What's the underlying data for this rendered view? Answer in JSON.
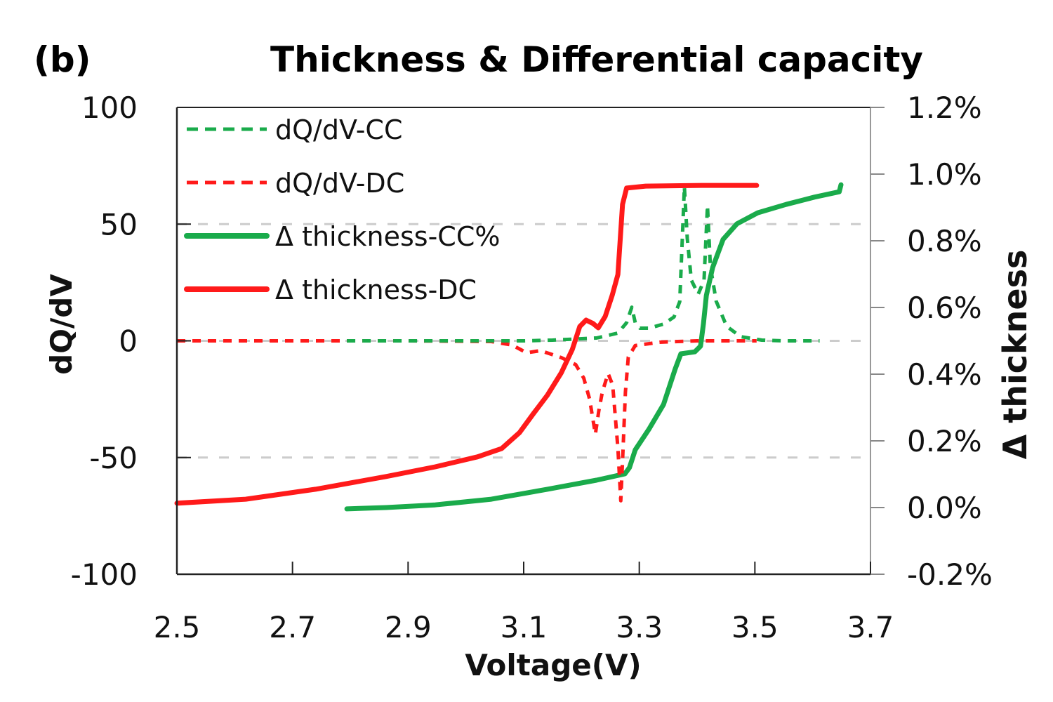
{
  "panel_label": "(b)",
  "chart_data": {
    "type": "line",
    "title": "Thickness & Differential capacity",
    "xlabel": "Voltage(V)",
    "ylabel": "dQ/dV",
    "y2label": "Δ thickness",
    "xlim": [
      2.5,
      3.7
    ],
    "ylim": [
      -100,
      100
    ],
    "y2lim": [
      -0.2,
      1.2
    ],
    "x_ticks": [
      "2.5",
      "2.7",
      "2.9",
      "3.1",
      "3.3",
      "3.5",
      "3.7"
    ],
    "x_tick_values": [
      2.5,
      2.7,
      2.9,
      3.1,
      3.3,
      3.5,
      3.7
    ],
    "y_ticks": [
      "100",
      "50",
      "0",
      "-50",
      "-100"
    ],
    "y_tick_values": [
      100,
      50,
      0,
      -50,
      -100
    ],
    "y2_ticks": [
      "1.2%",
      "1.0%",
      "0.8%",
      "0.6%",
      "0.4%",
      "0.2%",
      "0.0%",
      "-0.2%"
    ],
    "y2_tick_values": [
      1.2,
      1.0,
      0.8,
      0.6,
      0.4,
      0.2,
      0.0,
      -0.2
    ],
    "grid": "horizontal dashed at dQ/dV = 50, 0, -50",
    "legend_position": "top-left",
    "series": [
      {
        "name": "dQ/dV-CC",
        "axis": "left",
        "style": "dashed",
        "color": "#1aab4b",
        "x": [
          2.794,
          2.9,
          3.0,
          3.1,
          3.15,
          3.226,
          3.263,
          3.278,
          3.287,
          3.293,
          3.301,
          3.317,
          3.342,
          3.36,
          3.37,
          3.375,
          3.378,
          3.383,
          3.39,
          3.402,
          3.412,
          3.418,
          3.423,
          3.433,
          3.451,
          3.475,
          3.512,
          3.55,
          3.612
        ],
        "y": [
          0,
          0,
          0,
          0,
          0.3,
          1.2,
          3.3,
          7.8,
          14.4,
          7.8,
          5.4,
          5.4,
          7.2,
          10.2,
          16.8,
          47,
          66,
          44,
          26,
          20,
          26,
          58,
          32,
          17,
          6.3,
          1.8,
          0.3,
          0,
          0
        ]
      },
      {
        "name": "dQ/dV-DC",
        "axis": "left",
        "style": "dashed",
        "color": "#ff1a1a",
        "x": [
          2.5,
          2.7,
          2.9,
          3.044,
          3.08,
          3.105,
          3.129,
          3.165,
          3.19,
          3.204,
          3.214,
          3.224,
          3.23,
          3.236,
          3.246,
          3.254,
          3.263,
          3.268,
          3.272,
          3.276,
          3.281,
          3.293,
          3.335,
          3.4,
          3.503
        ],
        "y": [
          0,
          0,
          0,
          -0.3,
          -1.8,
          -5.1,
          -4.2,
          -7.2,
          -10.2,
          -16,
          -25,
          -40,
          -30,
          -22,
          -14,
          -19,
          -46,
          -68.5,
          -46,
          -22,
          -7,
          -2,
          -0.6,
          0,
          0
        ]
      },
      {
        "name": "Δ thickness-CC%",
        "axis": "right",
        "style": "solid",
        "color": "#1aab4b",
        "x": [
          2.794,
          2.862,
          2.947,
          3.044,
          3.141,
          3.226,
          3.275,
          3.283,
          3.293,
          3.317,
          3.342,
          3.362,
          3.372,
          3.396,
          3.406,
          3.411,
          3.416,
          3.427,
          3.445,
          3.469,
          3.505,
          3.554,
          3.603,
          3.646,
          3.649
        ],
        "y": [
          -0.004,
          0.0,
          0.008,
          0.025,
          0.055,
          0.082,
          0.101,
          0.12,
          0.173,
          0.236,
          0.309,
          0.415,
          0.461,
          0.467,
          0.484,
          0.552,
          0.636,
          0.72,
          0.804,
          0.851,
          0.884,
          0.909,
          0.931,
          0.947,
          0.968
        ]
      },
      {
        "name": "Δ thickness-DC",
        "axis": "right",
        "style": "solid",
        "color": "#ff1a1a",
        "x": [
          2.5,
          2.619,
          2.74,
          2.862,
          2.947,
          3.02,
          3.062,
          3.093,
          3.117,
          3.141,
          3.165,
          3.184,
          3.197,
          3.208,
          3.22,
          3.229,
          3.241,
          3.253,
          3.263,
          3.267,
          3.271,
          3.278,
          3.311,
          3.408,
          3.503
        ],
        "y": [
          0.013,
          0.025,
          0.055,
          0.093,
          0.122,
          0.152,
          0.177,
          0.225,
          0.282,
          0.337,
          0.404,
          0.474,
          0.543,
          0.562,
          0.552,
          0.539,
          0.573,
          0.636,
          0.699,
          0.804,
          0.909,
          0.958,
          0.964,
          0.966,
          0.966
        ]
      }
    ]
  }
}
